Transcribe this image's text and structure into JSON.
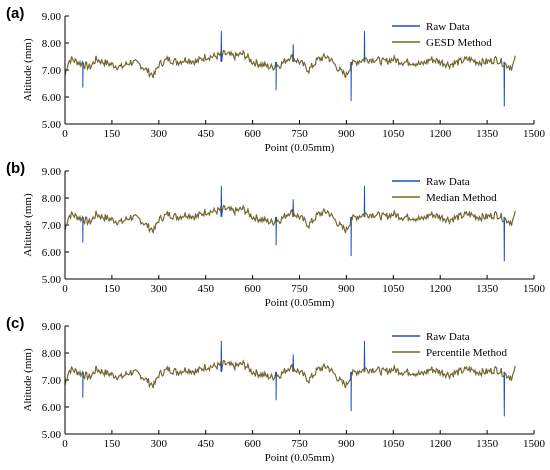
{
  "chart_data": [
    {
      "panel_label": "(a)",
      "type": "line",
      "xlabel": "Point (0.05mm)",
      "ylabel": "Altitude (mm)",
      "xlim": [
        0,
        1500
      ],
      "ylim": [
        5.0,
        9.0
      ],
      "x_ticks": [
        "0",
        "150",
        "300",
        "450",
        "600",
        "750",
        "900",
        "1050",
        "1200",
        "1350",
        "1500"
      ],
      "y_ticks": [
        "5.00",
        "6.00",
        "7.00",
        "8.00",
        "9.00"
      ],
      "legend_position": "top-right",
      "series": [
        {
          "name": "Raw Data",
          "color": "#1f4fbf"
        },
        {
          "name": "GESD Method",
          "color": "#7a6a1a"
        }
      ]
    },
    {
      "panel_label": "(b)",
      "type": "line",
      "xlabel": "Point (0.05mm)",
      "ylabel": "Altitude (mm)",
      "xlim": [
        0,
        1500
      ],
      "ylim": [
        5.0,
        9.0
      ],
      "x_ticks": [
        "0",
        "150",
        "300",
        "450",
        "600",
        "750",
        "900",
        "1050",
        "1200",
        "1350",
        "1500"
      ],
      "y_ticks": [
        "5.00",
        "6.00",
        "7.00",
        "8.00",
        "9.00"
      ],
      "legend_position": "top-right",
      "series": [
        {
          "name": "Raw Data",
          "color": "#1f4fbf"
        },
        {
          "name": "Median Method",
          "color": "#7a6a1a"
        }
      ]
    },
    {
      "panel_label": "(c)",
      "type": "line",
      "xlabel": "Point (0.05mm)",
      "ylabel": "Altitude (mm)",
      "xlim": [
        0,
        1500
      ],
      "ylim": [
        5.0,
        9.0
      ],
      "x_ticks": [
        "0",
        "150",
        "300",
        "450",
        "600",
        "750",
        "900",
        "1050",
        "1200",
        "1350",
        "1500"
      ],
      "y_ticks": [
        "5.00",
        "6.00",
        "7.00",
        "8.00",
        "9.00"
      ],
      "legend_position": "top-right",
      "series": [
        {
          "name": "Raw Data",
          "color": "#1f4fbf"
        },
        {
          "name": "Percentile Method",
          "color": "#7a6a1a"
        }
      ]
    }
  ],
  "shared_profile": {
    "base_x": [
      0,
      10,
      20,
      40,
      60,
      80,
      100,
      120,
      150,
      180,
      210,
      240,
      270,
      285,
      300,
      330,
      360,
      390,
      420,
      450,
      480,
      510,
      540,
      570,
      600,
      630,
      660,
      690,
      720,
      750,
      780,
      810,
      840,
      870,
      885,
      900,
      915,
      930,
      960,
      990,
      1020,
      1050,
      1080,
      1110,
      1140,
      1170,
      1200,
      1230,
      1260,
      1290,
      1320,
      1350,
      1380,
      1410,
      1430,
      1440
    ],
    "base_y": [
      6.8,
      7.3,
      7.4,
      7.3,
      7.2,
      7.1,
      7.4,
      7.3,
      7.2,
      7.1,
      7.3,
      7.2,
      6.9,
      6.8,
      7.2,
      7.4,
      7.3,
      7.4,
      7.3,
      7.5,
      7.5,
      7.6,
      7.5,
      7.6,
      7.3,
      7.2,
      7.1,
      7.2,
      7.5,
      7.3,
      7.0,
      7.4,
      7.5,
      7.1,
      6.9,
      6.8,
      7.2,
      7.3,
      7.4,
      7.4,
      7.3,
      7.4,
      7.3,
      7.3,
      7.2,
      7.4,
      7.3,
      7.2,
      7.3,
      7.4,
      7.3,
      7.3,
      7.4,
      7.2,
      7.1,
      7.4
    ],
    "raw_spikes": [
      {
        "x": 57,
        "y": 6.35
      },
      {
        "x": 500,
        "y": 8.45
      },
      {
        "x": 675,
        "y": 6.25
      },
      {
        "x": 730,
        "y": 7.95
      },
      {
        "x": 915,
        "y": 5.85
      },
      {
        "x": 958,
        "y": 8.45
      },
      {
        "x": 1405,
        "y": 5.65
      }
    ]
  }
}
